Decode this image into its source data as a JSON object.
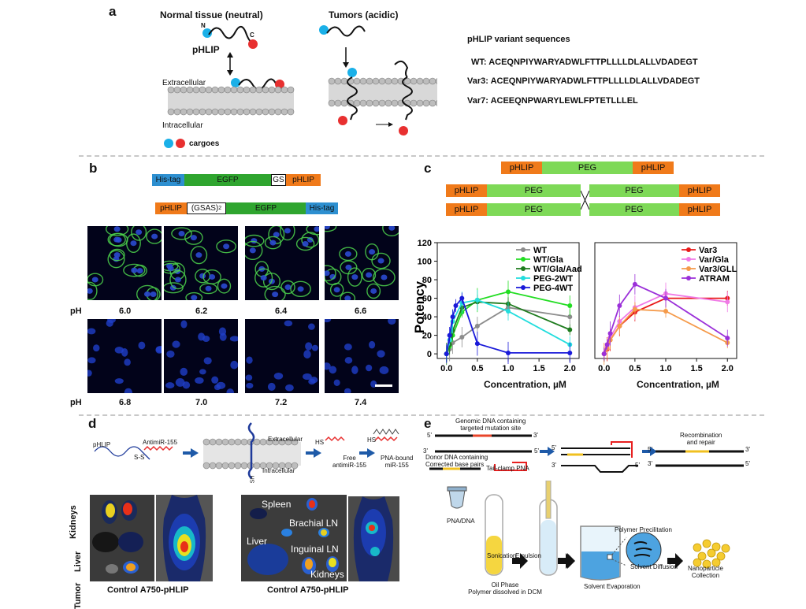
{
  "panels": {
    "a": "a",
    "b": "b",
    "c": "c",
    "d": "d",
    "e": "e"
  },
  "panel_a": {
    "normal_title": "Normal tissue (neutral)",
    "tumor_title": "Tumors (acidic)",
    "n_label": "N",
    "c_label": "C",
    "phlip_label": "pHLIP",
    "extracellular": "Extracellular",
    "intracellular": "Intracellular",
    "cargoes": "cargoes",
    "seq_title": "pHLIP variant sequences",
    "sequences": [
      {
        "name": "WT:",
        "seq": "ACEQNPIYWARYADWLFTTPLLLLDLALLVDADEGT"
      },
      {
        "name": "Var3:",
        "seq": "ACEQNPIYWARYADWLFTTPLLLLDLALLVDADEGT"
      },
      {
        "name": "Var7:",
        "seq": "ACEEQNPWARYLEWLFPTETLLLEL"
      }
    ]
  },
  "panel_b": {
    "construct1": {
      "his": "His-tag",
      "egfp": "EGFP",
      "gs": "GS",
      "phlip": "pHLIP"
    },
    "construct2": {
      "phlip": "pHLIP",
      "gsas": "(GSAS)",
      "gsas_sub": "2",
      "egfp": "EGFP",
      "his": "His-tag"
    },
    "ph_label": "pH",
    "row1_ph": [
      "6.0",
      "6.2",
      "6.4",
      "6.6"
    ],
    "row2_ph": [
      "6.8",
      "7.0",
      "7.2",
      "7.4"
    ]
  },
  "panel_c": {
    "top": {
      "left": "pHLIP",
      "mid": "PEG",
      "right": "pHLIP"
    },
    "cross": {
      "pHLIP": "pHLIP",
      "PEG": "PEG"
    },
    "ylabel": "Potency",
    "xlabel": "Concentration, µM"
  },
  "chart_data": [
    {
      "type": "line",
      "title": "",
      "xlabel": "Concentration, µM",
      "ylabel": "Potency",
      "xlim": [
        -0.15,
        2.15
      ],
      "ylim": [
        -5,
        120
      ],
      "xticks": [
        "0.0",
        "0.5",
        "1.0",
        "1.5",
        "2.0"
      ],
      "yticks": [
        "0",
        "20",
        "40",
        "60",
        "80",
        "100",
        "120"
      ],
      "legend": "top-right",
      "series": [
        {
          "name": "WT",
          "color": "#8c8c8c",
          "x": [
            0,
            0.05,
            0.1,
            0.25,
            0.5,
            1.0,
            2.0
          ],
          "y": [
            0,
            5,
            12,
            18,
            30,
            50,
            40
          ]
        },
        {
          "name": "WT/Gla",
          "color": "#22dd22",
          "x": [
            0,
            0.05,
            0.1,
            0.25,
            0.5,
            1.0,
            2.0
          ],
          "y": [
            0,
            8,
            20,
            45,
            58,
            67,
            52
          ]
        },
        {
          "name": "WT/Gla/Aad",
          "color": "#1e7b1e",
          "x": [
            0,
            0.05,
            0.1,
            0.25,
            0.5,
            1.0,
            2.0
          ],
          "y": [
            0,
            10,
            25,
            50,
            56,
            54,
            26
          ]
        },
        {
          "name": "PEG-2WT",
          "color": "#22dddd",
          "x": [
            0,
            0.05,
            0.1,
            0.25,
            0.5,
            1.0,
            2.0
          ],
          "y": [
            0,
            15,
            35,
            55,
            58,
            46,
            10
          ]
        },
        {
          "name": "PEG-4WT",
          "color": "#1a1ad9",
          "x": [
            0,
            0.05,
            0.1,
            0.15,
            0.25,
            0.5,
            1.0,
            2.0
          ],
          "y": [
            0,
            20,
            40,
            52,
            60,
            11,
            1,
            1
          ]
        }
      ]
    },
    {
      "type": "line",
      "title": "",
      "xlabel": "Concentration, µM",
      "ylabel": "",
      "xlim": [
        -0.15,
        2.15
      ],
      "ylim": [
        -5,
        120
      ],
      "xticks": [
        "0.0",
        "0.5",
        "1.0",
        "1.5",
        "2.0"
      ],
      "yticks": [],
      "legend": "top-right",
      "series": [
        {
          "name": "Var3",
          "color": "#e81919",
          "x": [
            0,
            0.05,
            0.1,
            0.25,
            0.5,
            1.0,
            2.0
          ],
          "y": [
            0,
            5,
            15,
            30,
            45,
            60,
            60
          ]
        },
        {
          "name": "Var/Gla",
          "color": "#f07ae6",
          "x": [
            0,
            0.05,
            0.1,
            0.25,
            0.5,
            1.0,
            2.0
          ],
          "y": [
            0,
            8,
            18,
            35,
            50,
            65,
            56
          ]
        },
        {
          "name": "Var3/GLL",
          "color": "#f59a4a",
          "x": [
            0,
            0.05,
            0.1,
            0.25,
            0.5,
            1.0,
            2.0
          ],
          "y": [
            0,
            6,
            15,
            30,
            48,
            46,
            12
          ]
        },
        {
          "name": "ATRAM",
          "color": "#9b30d9",
          "x": [
            0,
            0.05,
            0.1,
            0.25,
            0.5,
            1.0,
            2.0
          ],
          "y": [
            0,
            10,
            22,
            52,
            75,
            60,
            17
          ]
        }
      ]
    }
  ],
  "panel_d": {
    "phlip": "pHLIP",
    "antimir": "AntimiR-155",
    "ss": "S-S",
    "extracellular": "Extracellular",
    "intracellular": "Intracellular",
    "sh": "SH",
    "hs1": "HS",
    "free": "Free",
    "free2": "antimiR-155",
    "hs2": "HS",
    "pna_bound": "PNA-bound",
    "pna_bound2": "miR-155",
    "organs": [
      "Kidneys",
      "Liver",
      "Tumor"
    ],
    "caption_left": "Control A750-pHLIP",
    "organs2": {
      "spleen": "Spleen",
      "brachial": "Brachial LN",
      "liver": "Liver",
      "inguinal": "Inguinal LN",
      "kidneys": "Kidneys"
    },
    "caption_right": "Control A750-pHLIP"
  },
  "panel_e": {
    "genomic": "Genomic DNA containing",
    "genomic2": "targeted mutation site",
    "donor": "Donor DNA containing",
    "donor2": "Corrected base pairs",
    "tailclamp": "Tail-clamp PNA",
    "recomb": "Recombination",
    "recomb2": "and repair",
    "five": "5'",
    "three": "3'",
    "pna_dna": "PNA/DNA",
    "oil": "Oil Phase",
    "oil2": "Polymer dissolved in DCM",
    "sonication": "Sonication",
    "emulsion": "Emulsion",
    "precip": "Polymer Precilitation",
    "solvent_diff": "Solvent Diffusion",
    "solvent_evap": "Solvent Evaporation",
    "nano": "Nanoparticle",
    "nano2": "Collection"
  },
  "colors": {
    "cargo_blue": "#1ab0e8",
    "cargo_red": "#e83030",
    "his_tag": "#2d8fd0",
    "egfp": "#2fa52f",
    "phlip_orange": "#f07a1a",
    "peg_green": "#7ed957"
  }
}
